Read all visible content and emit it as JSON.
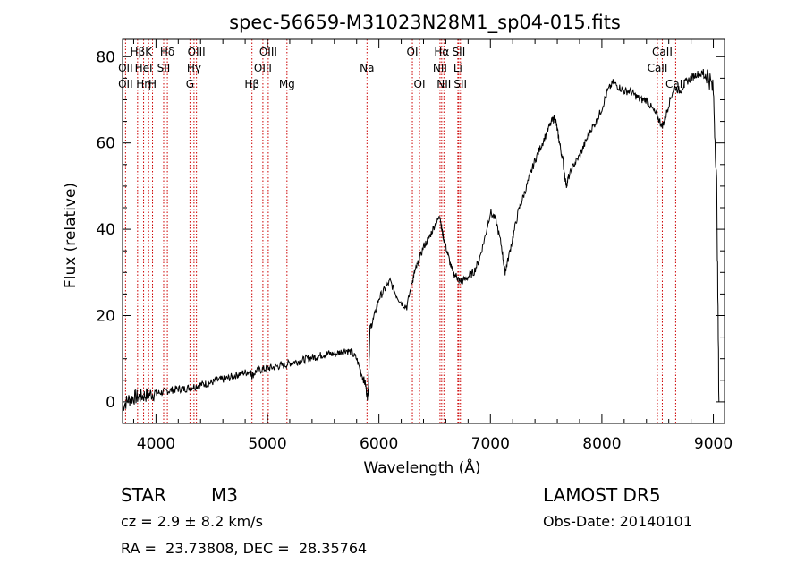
{
  "chart_data": {
    "type": "line",
    "title": "spec-56659-M31023N28M1_sp04-015.fits",
    "xlabel": "Wavelength (Å)",
    "ylabel": "Flux (relative)",
    "xlim": [
      3700,
      9100
    ],
    "ylim": [
      -5,
      84
    ],
    "xticks": [
      4000,
      5000,
      6000,
      7000,
      8000,
      9000
    ],
    "yticks": [
      0,
      20,
      40,
      60,
      80
    ],
    "grid": false,
    "spectrum": {
      "x": [
        3700,
        3750,
        3800,
        3850,
        3900,
        3950,
        4000,
        4050,
        4100,
        4150,
        4200,
        4250,
        4300,
        4350,
        4400,
        4450,
        4500,
        4550,
        4600,
        4650,
        4700,
        4750,
        4800,
        4850,
        4861,
        4900,
        4950,
        5000,
        5050,
        5100,
        5150,
        5200,
        5250,
        5300,
        5350,
        5400,
        5450,
        5500,
        5550,
        5600,
        5650,
        5700,
        5750,
        5800,
        5850,
        5880,
        5895,
        5905,
        5920,
        5950,
        6000,
        6050,
        6100,
        6150,
        6200,
        6250,
        6300,
        6320,
        6350,
        6400,
        6450,
        6500,
        6550,
        6563,
        6580,
        6620,
        6660,
        6700,
        6720,
        6750,
        6800,
        6850,
        6900,
        6950,
        7000,
        7050,
        7100,
        7130,
        7150,
        7200,
        7250,
        7300,
        7350,
        7400,
        7450,
        7500,
        7550,
        7580,
        7600,
        7620,
        7650,
        7680,
        7700,
        7750,
        7800,
        7850,
        7900,
        7950,
        8000,
        8050,
        8100,
        8150,
        8200,
        8250,
        8300,
        8350,
        8400,
        8450,
        8500,
        8540,
        8560,
        8600,
        8650,
        8700,
        8750,
        8800,
        8850,
        8900,
        8950,
        9000,
        9030,
        9050
      ],
      "y": [
        -1,
        0.5,
        1,
        1.2,
        1.5,
        1.8,
        2,
        2.2,
        2.5,
        2.8,
        3,
        3,
        3.3,
        3.6,
        4,
        4.2,
        4.5,
        5,
        5.2,
        5.5,
        6,
        6.5,
        6.8,
        7,
        6,
        7.2,
        7.5,
        7.8,
        8,
        8.3,
        8.5,
        9,
        9.3,
        9.5,
        10,
        10.3,
        10.5,
        11,
        11.2,
        11,
        11.5,
        12,
        11.5,
        10,
        6,
        4,
        1,
        3,
        17,
        19,
        24,
        26,
        28,
        25,
        23,
        22,
        28,
        30,
        32,
        36,
        38,
        41,
        43,
        40,
        38,
        34,
        30,
        29,
        28,
        28,
        29,
        30,
        33,
        38,
        44,
        42,
        36,
        30,
        32,
        38,
        44,
        48,
        52,
        56,
        59,
        62,
        65,
        66,
        63,
        60,
        56,
        50,
        52,
        55,
        57,
        60,
        63,
        65,
        68,
        72,
        74,
        73,
        72,
        72,
        71,
        70,
        70,
        68,
        66,
        64,
        65,
        69,
        73,
        72,
        74,
        75,
        76,
        76,
        76,
        72,
        50,
        0
      ]
    },
    "lines": [
      {
        "label": "Hβ",
        "x": 3835,
        "row": 0
      },
      {
        "label": "OII",
        "x": 3727,
        "row": 1
      },
      {
        "label": "OII",
        "x": 3727,
        "row": 2
      },
      {
        "label": "Hη",
        "x": 3889,
        "row": 2
      },
      {
        "label": "K",
        "x": 3934,
        "row": 0
      },
      {
        "label": "HeI",
        "x": 3889,
        "row": 1
      },
      {
        "label": "H",
        "x": 3969,
        "row": 2
      },
      {
        "label": "Hδ",
        "x": 4102,
        "row": 0
      },
      {
        "label": "SII",
        "x": 4069,
        "row": 1
      },
      {
        "label": "OIII",
        "x": 4363,
        "row": 0
      },
      {
        "label": "Hγ",
        "x": 4341,
        "row": 1
      },
      {
        "label": "G",
        "x": 4305,
        "row": 2
      },
      {
        "label": "OIII",
        "x": 5007,
        "row": 0
      },
      {
        "label": "OIII",
        "x": 4959,
        "row": 1
      },
      {
        "label": "Hβ",
        "x": 4861,
        "row": 2
      },
      {
        "label": "Mg",
        "x": 5175,
        "row": 2
      },
      {
        "label": "Na",
        "x": 5893,
        "row": 1
      },
      {
        "label": "OI",
        "x": 6300,
        "row": 0
      },
      {
        "label": "OI",
        "x": 6364,
        "row": 2
      },
      {
        "label": "Hα",
        "x": 6563,
        "row": 0
      },
      {
        "label": "SII",
        "x": 6716,
        "row": 0
      },
      {
        "label": "NII",
        "x": 6548,
        "row": 1
      },
      {
        "label": "Li",
        "x": 6708,
        "row": 1
      },
      {
        "label": "NII",
        "x": 6583,
        "row": 2
      },
      {
        "label": "SII",
        "x": 6731,
        "row": 2
      },
      {
        "label": "CaII",
        "x": 8542,
        "row": 0
      },
      {
        "label": "CaII",
        "x": 8498,
        "row": 1
      },
      {
        "label": "CaII",
        "x": 8662,
        "row": 2
      }
    ],
    "line_color": "#cc0000"
  },
  "info": {
    "class": "STAR",
    "subclass": "M3",
    "cz": "cz = 2.9 ± 8.2 km/s",
    "coords": "RA =  23.73808, DEC =  28.35764",
    "survey": "LAMOST DR5",
    "obsdate": "Obs-Date: 20140101"
  }
}
